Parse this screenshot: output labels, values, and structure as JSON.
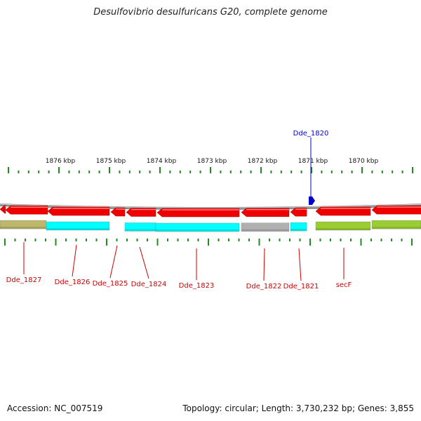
{
  "title": "Desulfovibrio desulfuricans G20, complete genome",
  "footer": {
    "accession_label": "Accession: NC_007519",
    "stats_label": "Topology: circular; Length: 3,730,232 bp; Genes: 3,855"
  },
  "axis": {
    "ticks": [
      "1876 kbp",
      "1875 kbp",
      "1874 kbp",
      "1873 kbp",
      "1872 kbp",
      "1871 kbp",
      "1870 kbp"
    ]
  },
  "highlighted_gene": {
    "label": "Dde_1820",
    "color": "#0000cc"
  },
  "genes": [
    {
      "label": "Dde_1827",
      "color": "#bdb76b"
    },
    {
      "label": "Dde_1826",
      "color": "#00ffff"
    },
    {
      "label": "Dde_1825",
      "color": "#00ffff"
    },
    {
      "label": "Dde_1824",
      "color": "#00ffff"
    },
    {
      "label": "Dde_1823",
      "color": "#00ffff"
    },
    {
      "label": "Dde_1822",
      "color": "#b0b0b0"
    },
    {
      "label": "Dde_1821",
      "color": "#00ffff"
    },
    {
      "label": "secF",
      "color": "#9acd32"
    }
  ],
  "colors": {
    "cds_arrow": "#ee0000",
    "tick": "#228b22",
    "backbone": "#888888",
    "label": "#cc0000"
  }
}
